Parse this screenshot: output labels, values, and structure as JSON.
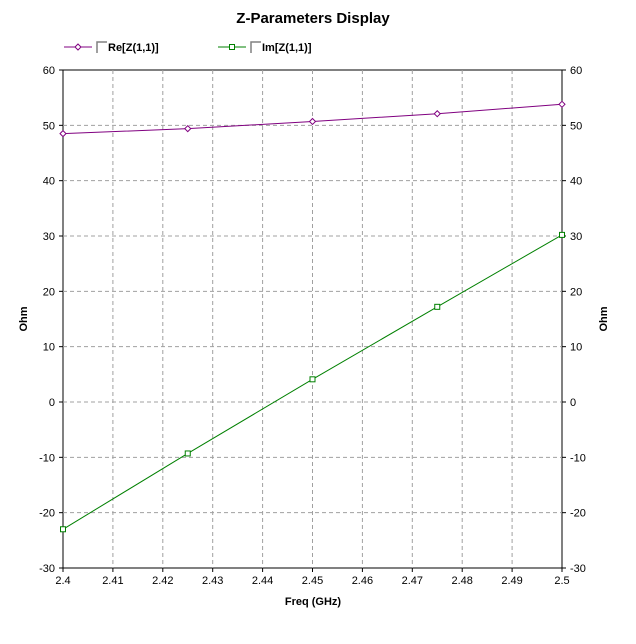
{
  "chart_data": {
    "type": "line",
    "title": "Z-Parameters Display",
    "xlabel": "Freq (GHz)",
    "ylabel": "Ohm",
    "ylabel_right": "Ohm",
    "xlim": [
      2.4,
      2.5
    ],
    "ylim": [
      -30,
      60
    ],
    "x_ticks": [
      "2.4",
      "2.41",
      "2.42",
      "2.43",
      "2.44",
      "2.45",
      "2.46",
      "2.47",
      "2.48",
      "2.49",
      "2.5"
    ],
    "y_ticks": [
      "60",
      "50",
      "40",
      "30",
      "20",
      "10",
      "0",
      "-10",
      "-20",
      "-30"
    ],
    "grid": true,
    "legend_position": "top-left",
    "series": [
      {
        "name": "Re[Z(1,1)]",
        "color": "#800080",
        "marker": "diamond",
        "x": [
          2.4,
          2.425,
          2.45,
          2.475,
          2.5
        ],
        "values": [
          48.5,
          49.4,
          50.7,
          52.1,
          53.8
        ]
      },
      {
        "name": "Im[Z(1,1)]",
        "color": "#008000",
        "marker": "square",
        "x": [
          2.4,
          2.425,
          2.45,
          2.475,
          2.5
        ],
        "values": [
          -23.0,
          -9.3,
          4.1,
          17.2,
          30.2
        ]
      }
    ]
  }
}
